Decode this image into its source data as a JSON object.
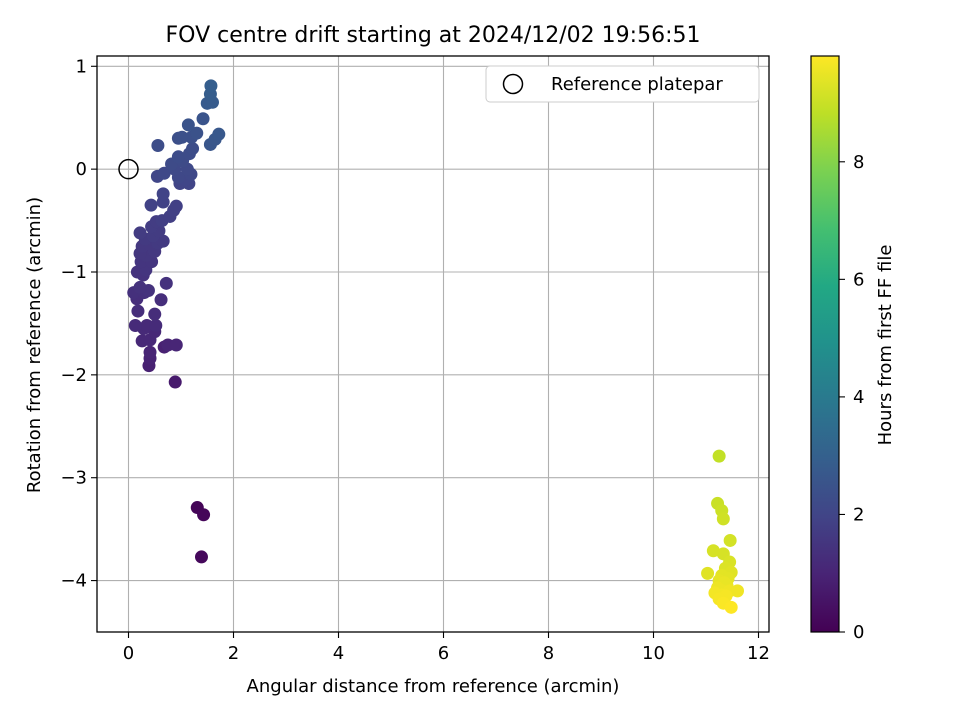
{
  "chart_data": {
    "type": "scatter",
    "title": "FOV centre drift starting at 2024/12/02 19:56:51",
    "xlabel": "Angular distance from reference (arcmin)",
    "ylabel": "Rotation from reference (arcmin)",
    "xlim": [
      -0.6,
      12.2
    ],
    "ylim": [
      -4.5,
      1.1
    ],
    "xticks": [
      0,
      2,
      4,
      6,
      8,
      10,
      12
    ],
    "yticks": [
      -4,
      -3,
      -2,
      -1,
      0,
      1
    ],
    "xtick_labels": [
      "0",
      "2",
      "4",
      "6",
      "8",
      "10",
      "12"
    ],
    "ytick_labels": [
      "−4",
      "−3",
      "−2",
      "−1",
      "0",
      "1"
    ],
    "grid": true,
    "legend": {
      "placement": "top-right",
      "entries": [
        "Reference platepar"
      ]
    },
    "reference_point": {
      "name": "Reference platepar",
      "x": 0,
      "y": 0
    },
    "colorbar": {
      "label": "Hours from first FF file",
      "colormap": "viridis",
      "range": [
        0,
        9.8
      ],
      "ticks": [
        0,
        2,
        4,
        6,
        8
      ],
      "tick_labels": [
        "0",
        "2",
        "4",
        "6",
        "8"
      ]
    },
    "series": [
      {
        "points": [
          {
            "x": 1.31,
            "y": -3.29,
            "c": 0.1
          },
          {
            "x": 1.43,
            "y": -3.36,
            "c": 0.15
          },
          {
            "x": 1.39,
            "y": -3.77,
            "c": 0.2
          },
          {
            "x": 0.89,
            "y": -2.07,
            "c": 0.7
          },
          {
            "x": 0.39,
            "y": -1.91,
            "c": 0.9
          },
          {
            "x": 0.41,
            "y": -1.84,
            "c": 0.95
          },
          {
            "x": 0.41,
            "y": -1.78,
            "c": 1.0
          },
          {
            "x": 0.68,
            "y": -1.73,
            "c": 0.9
          },
          {
            "x": 0.75,
            "y": -1.71,
            "c": 1.0
          },
          {
            "x": 0.91,
            "y": -1.71,
            "c": 1.05
          },
          {
            "x": 0.26,
            "y": -1.67,
            "c": 1.1
          },
          {
            "x": 0.41,
            "y": -1.66,
            "c": 1.1
          },
          {
            "x": 0.5,
            "y": -1.58,
            "c": 1.1
          },
          {
            "x": 0.29,
            "y": -1.55,
            "c": 1.15
          },
          {
            "x": 0.35,
            "y": -1.52,
            "c": 1.15
          },
          {
            "x": 0.13,
            "y": -1.52,
            "c": 1.2
          },
          {
            "x": 0.52,
            "y": -1.52,
            "c": 1.2
          },
          {
            "x": 0.5,
            "y": -1.41,
            "c": 1.25
          },
          {
            "x": 0.18,
            "y": -1.38,
            "c": 1.3
          },
          {
            "x": 0.62,
            "y": -1.27,
            "c": 1.3
          },
          {
            "x": 0.16,
            "y": -1.26,
            "c": 1.3
          },
          {
            "x": 0.1,
            "y": -1.2,
            "c": 1.35
          },
          {
            "x": 0.3,
            "y": -1.2,
            "c": 1.35
          },
          {
            "x": 0.38,
            "y": -1.18,
            "c": 1.4
          },
          {
            "x": 0.22,
            "y": -1.15,
            "c": 1.4
          },
          {
            "x": 0.72,
            "y": -1.11,
            "c": 1.4
          },
          {
            "x": 0.28,
            "y": -1.03,
            "c": 1.45
          },
          {
            "x": 0.17,
            "y": -1.0,
            "c": 1.45
          },
          {
            "x": 0.33,
            "y": -0.98,
            "c": 1.5
          },
          {
            "x": 0.24,
            "y": -0.9,
            "c": 1.5
          },
          {
            "x": 0.44,
            "y": -0.9,
            "c": 1.5
          },
          {
            "x": 0.34,
            "y": -0.84,
            "c": 1.55
          },
          {
            "x": 0.22,
            "y": -0.82,
            "c": 1.55
          },
          {
            "x": 0.5,
            "y": -0.8,
            "c": 1.6
          },
          {
            "x": 0.26,
            "y": -0.75,
            "c": 1.6
          },
          {
            "x": 0.4,
            "y": -0.73,
            "c": 1.6
          },
          {
            "x": 0.56,
            "y": -0.72,
            "c": 1.65
          },
          {
            "x": 0.66,
            "y": -0.7,
            "c": 1.65
          },
          {
            "x": 0.32,
            "y": -0.68,
            "c": 1.65
          },
          {
            "x": 0.47,
            "y": -0.65,
            "c": 1.7
          },
          {
            "x": 0.22,
            "y": -0.62,
            "c": 1.7
          },
          {
            "x": 0.58,
            "y": -0.6,
            "c": 1.7
          },
          {
            "x": 0.44,
            "y": -0.56,
            "c": 1.75
          },
          {
            "x": 0.53,
            "y": -0.51,
            "c": 1.75
          },
          {
            "x": 0.64,
            "y": -0.5,
            "c": 1.8
          },
          {
            "x": 0.79,
            "y": -0.46,
            "c": 1.8
          },
          {
            "x": 0.86,
            "y": -0.4,
            "c": 1.85
          },
          {
            "x": 0.91,
            "y": -0.36,
            "c": 1.85
          },
          {
            "x": 0.43,
            "y": -0.35,
            "c": 1.9
          },
          {
            "x": 0.66,
            "y": -0.32,
            "c": 1.9
          },
          {
            "x": 0.66,
            "y": -0.24,
            "c": 1.95
          },
          {
            "x": 0.98,
            "y": -0.14,
            "c": 2.0
          },
          {
            "x": 1.15,
            "y": -0.14,
            "c": 2.0
          },
          {
            "x": 1.08,
            "y": -0.1,
            "c": 2.05
          },
          {
            "x": 0.55,
            "y": -0.07,
            "c": 2.05
          },
          {
            "x": 0.95,
            "y": -0.08,
            "c": 2.1
          },
          {
            "x": 1.19,
            "y": -0.05,
            "c": 2.1
          },
          {
            "x": 0.68,
            "y": -0.04,
            "c": 2.1
          },
          {
            "x": 0.88,
            "y": 0.0,
            "c": 2.15
          },
          {
            "x": 1.12,
            "y": 0.0,
            "c": 2.15
          },
          {
            "x": 0.82,
            "y": 0.05,
            "c": 2.2
          },
          {
            "x": 1.03,
            "y": 0.08,
            "c": 2.2
          },
          {
            "x": 0.95,
            "y": 0.12,
            "c": 2.25
          },
          {
            "x": 1.16,
            "y": 0.15,
            "c": 2.25
          },
          {
            "x": 1.22,
            "y": 0.2,
            "c": 2.3
          },
          {
            "x": 0.56,
            "y": 0.23,
            "c": 2.3
          },
          {
            "x": 0.95,
            "y": 0.3,
            "c": 2.35
          },
          {
            "x": 1.02,
            "y": 0.31,
            "c": 2.4
          },
          {
            "x": 1.2,
            "y": 0.31,
            "c": 2.4
          },
          {
            "x": 1.3,
            "y": 0.35,
            "c": 2.45
          },
          {
            "x": 1.14,
            "y": 0.43,
            "c": 2.5
          },
          {
            "x": 1.42,
            "y": 0.49,
            "c": 2.55
          },
          {
            "x": 1.56,
            "y": 0.24,
            "c": 2.6
          },
          {
            "x": 1.65,
            "y": 0.29,
            "c": 2.65
          },
          {
            "x": 1.72,
            "y": 0.34,
            "c": 2.7
          },
          {
            "x": 1.5,
            "y": 0.64,
            "c": 2.75
          },
          {
            "x": 1.6,
            "y": 0.65,
            "c": 2.8
          },
          {
            "x": 1.56,
            "y": 0.73,
            "c": 2.85
          },
          {
            "x": 1.57,
            "y": 0.81,
            "c": 2.9
          },
          {
            "x": 11.25,
            "y": -2.79,
            "c": 8.9
          },
          {
            "x": 11.22,
            "y": -3.25,
            "c": 9.0
          },
          {
            "x": 11.3,
            "y": -3.32,
            "c": 9.05
          },
          {
            "x": 11.33,
            "y": -3.4,
            "c": 9.1
          },
          {
            "x": 11.46,
            "y": -3.61,
            "c": 9.15
          },
          {
            "x": 11.14,
            "y": -3.71,
            "c": 9.2
          },
          {
            "x": 11.33,
            "y": -3.74,
            "c": 9.2
          },
          {
            "x": 11.45,
            "y": -3.82,
            "c": 9.25
          },
          {
            "x": 11.37,
            "y": -3.88,
            "c": 9.3
          },
          {
            "x": 11.48,
            "y": -3.92,
            "c": 9.35
          },
          {
            "x": 11.03,
            "y": -3.93,
            "c": 9.35
          },
          {
            "x": 11.3,
            "y": -3.95,
            "c": 9.4
          },
          {
            "x": 11.42,
            "y": -3.98,
            "c": 9.4
          },
          {
            "x": 11.25,
            "y": -4.0,
            "c": 9.45
          },
          {
            "x": 11.35,
            "y": -4.02,
            "c": 9.5
          },
          {
            "x": 11.4,
            "y": -4.05,
            "c": 9.5
          },
          {
            "x": 11.22,
            "y": -4.07,
            "c": 9.55
          },
          {
            "x": 11.28,
            "y": -4.09,
            "c": 9.55
          },
          {
            "x": 11.45,
            "y": -4.1,
            "c": 9.6
          },
          {
            "x": 11.6,
            "y": -4.1,
            "c": 9.6
          },
          {
            "x": 11.17,
            "y": -4.12,
            "c": 9.65
          },
          {
            "x": 11.3,
            "y": -4.14,
            "c": 9.65
          },
          {
            "x": 11.38,
            "y": -4.15,
            "c": 9.7
          },
          {
            "x": 11.25,
            "y": -4.18,
            "c": 9.7
          },
          {
            "x": 11.33,
            "y": -4.22,
            "c": 9.75
          },
          {
            "x": 11.48,
            "y": -4.26,
            "c": 9.8
          }
        ]
      }
    ]
  }
}
